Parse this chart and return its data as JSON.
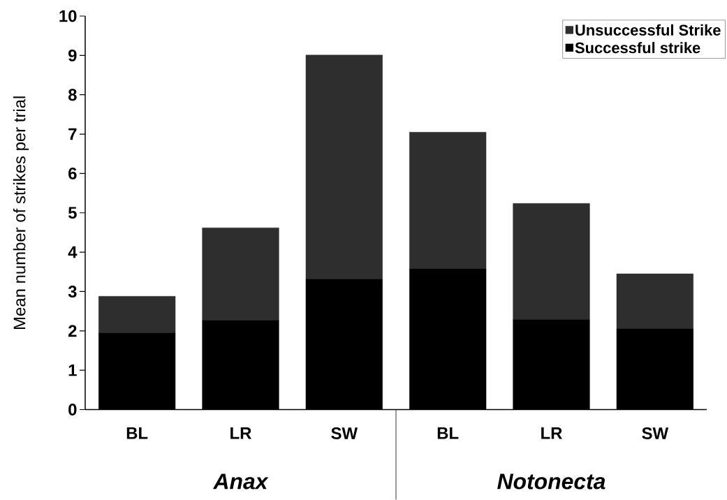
{
  "chart_data": {
    "type": "bar",
    "stacked": true,
    "categories": [
      "BL",
      "LR",
      "SW",
      "BL",
      "LR",
      "SW"
    ],
    "series": [
      {
        "name": "Successful strike",
        "color": "#000000",
        "values": [
          1.95,
          2.27,
          3.31,
          3.58,
          2.29,
          2.05
        ]
      },
      {
        "name": "Unsuccessful Strike",
        "color": "#2e2e2e",
        "values": [
          0.93,
          2.35,
          5.7,
          3.47,
          2.95,
          1.4
        ]
      }
    ],
    "ylabel": "Mean number of strikes per trial",
    "ylim": [
      0,
      10
    ],
    "yticks": [
      0,
      1,
      2,
      3,
      4,
      5,
      6,
      7,
      8,
      9,
      10
    ],
    "legend": "top right",
    "annotations": [
      "Anax",
      "Notonecta"
    ]
  }
}
